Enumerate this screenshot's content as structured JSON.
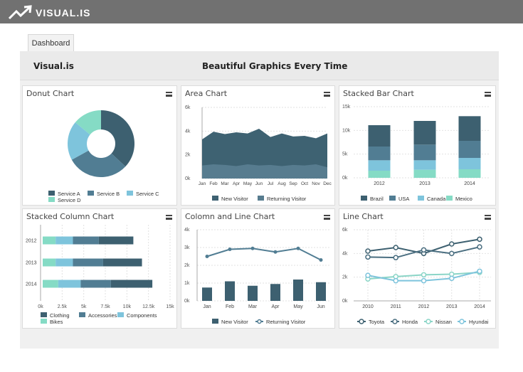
{
  "app": {
    "logo_text": "VISUAL.IS",
    "tab_label": "Dashboard",
    "app_name": "Visual.is",
    "tagline": "Beautiful Graphics Every Time"
  },
  "colors": {
    "dark": "#3d6070",
    "mid": "#517d93",
    "light": "#7ec4dc",
    "mint": "#85dbc5",
    "area_dark": "#3e6272",
    "area_mid": "#577c8f",
    "line1": "#3d6070",
    "line2": "#4a6e80",
    "line3": "#8bd5c7",
    "line4": "#7ec4dc"
  },
  "charts": {
    "donut": {
      "title": "Donut Chart"
    },
    "area": {
      "title": "Area Chart"
    },
    "stacked_bar": {
      "title": "Stacked Bar Chart"
    },
    "stacked_column": {
      "title": "Stacked Column Chart"
    },
    "combo": {
      "title": "Colomn and Line Chart"
    },
    "line": {
      "title": "Line Chart"
    }
  },
  "chart_data": [
    {
      "type": "pie",
      "title": "Donut Chart",
      "categories": [
        "Service A",
        "Service B",
        "Service C",
        "Service D"
      ],
      "values": [
        37,
        30,
        19,
        14
      ]
    },
    {
      "type": "area",
      "title": "Area Chart",
      "categories": [
        "Jan",
        "Feb",
        "Mar",
        "Apr",
        "May",
        "Jun",
        "Jul",
        "Aug",
        "Sep",
        "Oct",
        "Nov",
        "Dec"
      ],
      "series": [
        {
          "name": "New Visitor",
          "values": [
            3300,
            3950,
            3750,
            3900,
            3800,
            4200,
            3500,
            3800,
            3550,
            3600,
            3400,
            3800
          ]
        },
        {
          "name": "Returning Visitor",
          "values": [
            1100,
            1200,
            1150,
            1050,
            1200,
            1100,
            1150,
            1050,
            1150,
            1100,
            1200,
            950
          ]
        }
      ],
      "yticks": [
        "0k",
        "2k",
        "4k",
        "6k"
      ],
      "ylim": [
        0,
        6000
      ]
    },
    {
      "type": "bar",
      "title": "Stacked Bar Chart",
      "categories": [
        "2012",
        "2013",
        "2014"
      ],
      "series": [
        {
          "name": "Mexico",
          "values": [
            1500,
            1700,
            1800
          ]
        },
        {
          "name": "Canada",
          "values": [
            2200,
            2000,
            2400
          ]
        },
        {
          "name": "USA",
          "values": [
            2900,
            3300,
            3600
          ]
        },
        {
          "name": "Brazil",
          "values": [
            4500,
            5000,
            5200
          ]
        }
      ],
      "yticks": [
        "0k",
        "5k",
        "10k",
        "15k"
      ],
      "ylim": [
        0,
        15000
      ]
    },
    {
      "type": "bar",
      "title": "Stacked Column Chart",
      "categories": [
        "2012",
        "2013",
        "2014"
      ],
      "series": [
        {
          "name": "Bikes",
          "values": [
            1500,
            1500,
            1800
          ]
        },
        {
          "name": "Components",
          "values": [
            2000,
            2000,
            2600
          ]
        },
        {
          "name": "Accessories",
          "values": [
            3000,
            3500,
            3500
          ]
        },
        {
          "name": "Clothing",
          "values": [
            4000,
            4500,
            4800
          ]
        }
      ],
      "xticks": [
        "0k",
        "2.5k",
        "5k",
        "7.5k",
        "10k",
        "12.5k",
        "15k"
      ],
      "xlim": [
        0,
        15000
      ]
    },
    {
      "type": "bar",
      "title": "Colomn and Line Chart",
      "categories": [
        "Jan",
        "Feb",
        "Mar",
        "Apr",
        "May",
        "Jun"
      ],
      "series": [
        {
          "name": "New Visitor",
          "values": [
            750,
            1100,
            850,
            950,
            1200,
            1050
          ]
        },
        {
          "name": "Returning Visitor",
          "values": [
            2500,
            2900,
            2950,
            2750,
            2950,
            2300
          ]
        }
      ],
      "yticks": [
        "0k",
        "1k",
        "2k",
        "3k",
        "4k"
      ],
      "ylim": [
        0,
        4000
      ]
    },
    {
      "type": "line",
      "title": "Line Chart",
      "categories": [
        "2010",
        "2011",
        "2012",
        "2013",
        "2014"
      ],
      "series": [
        {
          "name": "Toyota",
          "values": [
            4200,
            4500,
            4000,
            4800,
            5200
          ]
        },
        {
          "name": "Honda",
          "values": [
            3700,
            3650,
            4300,
            4000,
            4550
          ]
        },
        {
          "name": "Nissan",
          "values": [
            1850,
            2050,
            2200,
            2250,
            2400
          ]
        },
        {
          "name": "Hyundai",
          "values": [
            2150,
            1700,
            1700,
            1900,
            2500
          ]
        }
      ],
      "yticks": [
        "0k",
        "2k",
        "4k",
        "6k"
      ],
      "ylim": [
        0,
        6000
      ]
    }
  ]
}
